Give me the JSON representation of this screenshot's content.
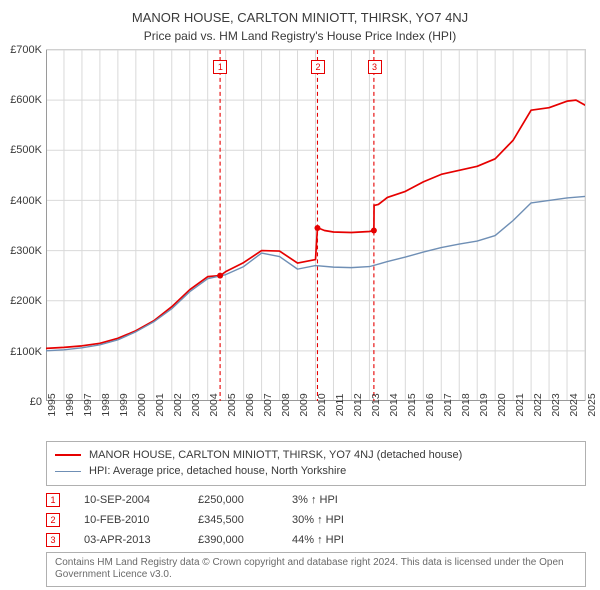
{
  "title": "MANOR HOUSE, CARLTON MINIOTT, THIRSK, YO7 4NJ",
  "subtitle": "Price paid vs. HM Land Registry's House Price Index (HPI)",
  "chart": {
    "type": "line",
    "background_color": "#ffffff",
    "grid_color": "#d9d9d9",
    "xlim": [
      1995,
      2025
    ],
    "ylim": [
      0,
      700000
    ],
    "ytick_step": 100000,
    "ytick_prefix": "£",
    "ytick_suffix": "K",
    "x_ticks": [
      1995,
      1996,
      1997,
      1998,
      1999,
      2000,
      2001,
      2002,
      2003,
      2004,
      2005,
      2006,
      2007,
      2008,
      2009,
      2010,
      2011,
      2012,
      2013,
      2014,
      2015,
      2016,
      2017,
      2018,
      2019,
      2020,
      2021,
      2022,
      2023,
      2024,
      2025
    ],
    "tick_fontsize": 11,
    "series": [
      {
        "name": "price_paid",
        "label": "MANOR HOUSE, CARLTON MINIOTT, THIRSK, YO7 4NJ (detached house)",
        "color": "#e60000",
        "line_width": 1.7,
        "x": [
          1995,
          1996,
          1997,
          1998,
          1999,
          2000,
          2001,
          2002,
          2003,
          2004,
          2004.69,
          2004.7,
          2005,
          2006,
          2007,
          2008,
          2009,
          2010,
          2010.11,
          2010.12,
          2010.5,
          2011,
          2012,
          2013,
          2013.25,
          2013.26,
          2013.5,
          2014,
          2015,
          2016,
          2017,
          2018,
          2019,
          2020,
          2021,
          2022,
          2023,
          2024,
          2024.5,
          2025
        ],
        "y": [
          105000,
          107000,
          110000,
          115000,
          125000,
          140000,
          160000,
          188000,
          222000,
          248000,
          250000,
          250000,
          258000,
          276000,
          300000,
          299000,
          275000,
          282000,
          345000,
          345500,
          340000,
          337000,
          336000,
          338000,
          340000,
          390000,
          392000,
          406000,
          418000,
          437000,
          452000,
          460000,
          468000,
          483000,
          520000,
          580000,
          585000,
          598000,
          600000,
          590000
        ]
      },
      {
        "name": "hpi",
        "label": "HPI: Average price, detached house, North Yorkshire",
        "color": "#6f8fb5",
        "line_width": 1.4,
        "x": [
          1995,
          1996,
          1997,
          1998,
          1999,
          2000,
          2001,
          2002,
          2003,
          2004,
          2005,
          2006,
          2007,
          2008,
          2009,
          2010,
          2011,
          2012,
          2013,
          2014,
          2015,
          2016,
          2017,
          2018,
          2019,
          2020,
          2021,
          2022,
          2023,
          2024,
          2025
        ],
        "y": [
          100000,
          102000,
          106000,
          112000,
          122000,
          138000,
          158000,
          184000,
          218000,
          244000,
          252000,
          268000,
          295000,
          288000,
          263000,
          270000,
          267000,
          266000,
          268000,
          278000,
          287000,
          297000,
          306000,
          313000,
          319000,
          330000,
          360000,
          395000,
          400000,
          405000,
          408000
        ]
      }
    ],
    "event_markers": [
      {
        "n": "1",
        "year": 2004.69,
        "label_y": 0.97,
        "date": "10-SEP-2004",
        "price": "£250,000",
        "delta": "3% ↑ HPI"
      },
      {
        "n": "2",
        "year": 2010.11,
        "label_y": 0.97,
        "date": "10-FEB-2010",
        "price": "£345,500",
        "delta": "30% ↑ HPI"
      },
      {
        "n": "3",
        "year": 2013.25,
        "label_y": 0.97,
        "date": "03-APR-2013",
        "price": "£390,000",
        "delta": "44% ↑ HPI"
      }
    ],
    "marker_dash": "4,3",
    "marker_line_color": "#e60000",
    "sale_dot_radius": 3,
    "sale_dot_color": "#e60000"
  },
  "disclaimer": "Contains HM Land Registry data © Crown copyright and database right 2024. This data is licensed under the Open Government Licence v3.0."
}
